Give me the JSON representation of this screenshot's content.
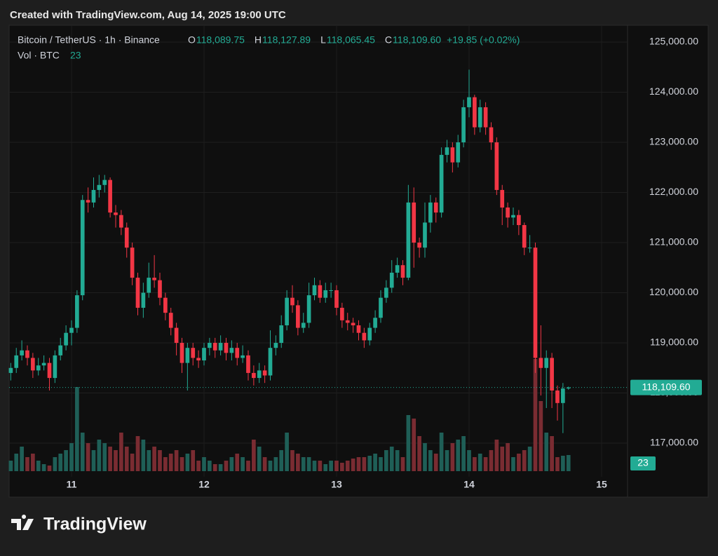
{
  "credit": "Created with TradingView.com, Aug 14, 2025 19:00 UTC",
  "brand": "TradingView",
  "chart_data": {
    "type": "candlestick",
    "symbol": "Bitcoin / TetherUS · 1h · Binance",
    "ohlc_header": [
      {
        "key": "O",
        "label": "118,089.75"
      },
      {
        "key": "H",
        "label": "118,127.89"
      },
      {
        "key": "L",
        "label": "118,065.45"
      },
      {
        "key": "C",
        "label": "118,109.60"
      }
    ],
    "change": "+19.85 (+0.02%)",
    "volume_title": "Vol · BTC",
    "volume_last": {
      "value": 23,
      "label": "23"
    },
    "last_price": {
      "value": 118109.6,
      "label": "118,109.60"
    },
    "up_color": "#22ab94",
    "down_color": "#f23645",
    "volume_up_color": "#1f5f57",
    "volume_down_color": "#7a2c32",
    "grid": true,
    "xlim": [
      -11.3,
      100.7
    ],
    "xticks": [
      {
        "value": 0,
        "label": "11"
      },
      {
        "value": 24,
        "label": "12"
      },
      {
        "value": 48,
        "label": "13"
      },
      {
        "value": 72,
        "label": "14"
      },
      {
        "value": 96,
        "label": "15"
      }
    ],
    "ylim": [
      116329,
      125280
    ],
    "yticks": [
      {
        "value": 117000,
        "label": "117,000.00"
      },
      {
        "value": 118000,
        "label": "118,000.00"
      },
      {
        "value": 119000,
        "label": "119,000.00"
      },
      {
        "value": 120000,
        "label": "120,000.00"
      },
      {
        "value": 121000,
        "label": "121,000.00"
      },
      {
        "value": 122000,
        "label": "122,000.00"
      },
      {
        "value": 123000,
        "label": "123,000.00"
      },
      {
        "value": 124000,
        "label": "124,000.00"
      },
      {
        "value": 125000,
        "label": "125,000.00"
      }
    ],
    "volume_lim": [
      0,
      632
    ],
    "x": [
      -11,
      -10,
      -9,
      -8,
      -7,
      -6,
      -5,
      -4,
      -3,
      -2,
      -1,
      0,
      1,
      2,
      3,
      4,
      5,
      6,
      7,
      8,
      9,
      10,
      11,
      12,
      13,
      14,
      15,
      16,
      17,
      18,
      19,
      20,
      21,
      22,
      23,
      24,
      25,
      26,
      27,
      28,
      29,
      30,
      31,
      32,
      33,
      34,
      35,
      36,
      37,
      38,
      39,
      40,
      41,
      42,
      43,
      44,
      45,
      46,
      47,
      48,
      49,
      50,
      51,
      52,
      53,
      54,
      55,
      56,
      57,
      58,
      59,
      60,
      61,
      62,
      63,
      64,
      65,
      66,
      67,
      68,
      69,
      70,
      71,
      72,
      73,
      74,
      75,
      76,
      77,
      78,
      79,
      80,
      81,
      82,
      83,
      84,
      85,
      86,
      87,
      88,
      89,
      90
    ],
    "open": [
      118400,
      118500,
      118750,
      118850,
      118700,
      118450,
      118550,
      118600,
      118300,
      118750,
      118950,
      119200,
      119300,
      119950,
      121850,
      121800,
      122050,
      122150,
      122250,
      121600,
      121550,
      121300,
      120900,
      120300,
      119700,
      120000,
      120300,
      120250,
      119900,
      119600,
      119300,
      119000,
      118600,
      118900,
      118700,
      118650,
      118900,
      119000,
      118850,
      119000,
      118800,
      118900,
      118700,
      118750,
      118400,
      118300,
      118450,
      118350,
      118900,
      119000,
      119350,
      119900,
      119750,
      119300,
      119400,
      119950,
      120150,
      119900,
      120050,
      120050,
      119700,
      119450,
      119400,
      119350,
      119200,
      119050,
      119300,
      119500,
      119900,
      120100,
      120400,
      120550,
      120300,
      121800,
      121000,
      120900,
      121400,
      121800,
      121600,
      122750,
      122900,
      122600,
      123000,
      123700,
      123900,
      123300,
      123700,
      123300,
      123000,
      122050,
      121700,
      121500,
      121550,
      121350,
      120900,
      120900,
      118700,
      118500,
      118700,
      118050,
      117800,
      118089.75
    ],
    "high": [
      118600,
      118900,
      119050,
      118950,
      118800,
      118700,
      118750,
      118700,
      118850,
      119100,
      119350,
      119450,
      120050,
      121950,
      122100,
      122300,
      122350,
      122350,
      122300,
      121750,
      121650,
      121400,
      121000,
      120400,
      120200,
      120600,
      120750,
      120400,
      120000,
      119700,
      119400,
      119100,
      119000,
      119000,
      118850,
      119000,
      119100,
      119100,
      119150,
      119100,
      119050,
      119000,
      118950,
      118850,
      118550,
      118600,
      118550,
      119250,
      119150,
      119550,
      120050,
      120150,
      119850,
      119600,
      120200,
      120300,
      120250,
      120200,
      120200,
      120150,
      119800,
      119600,
      119500,
      119450,
      119300,
      119400,
      119650,
      120050,
      120250,
      120650,
      120700,
      120650,
      122150,
      122100,
      121100,
      121800,
      121950,
      121900,
      122900,
      123050,
      123000,
      123150,
      123850,
      124450,
      123950,
      123850,
      123800,
      123400,
      123100,
      122150,
      121800,
      121700,
      121650,
      121400,
      121150,
      121000,
      119350,
      118850,
      118800,
      118150,
      118200,
      118127.89
    ],
    "low": [
      118250,
      118400,
      118650,
      118550,
      118300,
      118350,
      118450,
      118050,
      118200,
      118650,
      118850,
      118950,
      119200,
      119850,
      121600,
      121700,
      121900,
      122000,
      121500,
      121300,
      121150,
      120700,
      120150,
      119550,
      119500,
      119900,
      120100,
      119750,
      119450,
      119150,
      118750,
      118400,
      118050,
      118550,
      118500,
      118550,
      118750,
      118700,
      118750,
      118650,
      118650,
      118550,
      118600,
      118250,
      118150,
      118200,
      118200,
      118250,
      118750,
      118900,
      119250,
      119600,
      119150,
      119200,
      119300,
      119850,
      119800,
      119800,
      119900,
      119550,
      119300,
      119250,
      119200,
      119050,
      118900,
      118950,
      119200,
      119400,
      119800,
      120000,
      120300,
      120150,
      120250,
      120500,
      120700,
      120700,
      121200,
      121400,
      121500,
      122600,
      122400,
      122500,
      122900,
      123500,
      123150,
      123200,
      123150,
      122850,
      121950,
      121350,
      121300,
      121350,
      121150,
      120750,
      120800,
      118400,
      117950,
      117700,
      117700,
      117450,
      117200,
      118065.45
    ],
    "close": [
      118500,
      118750,
      118850,
      118700,
      118450,
      118550,
      118600,
      118300,
      118750,
      118950,
      119200,
      119300,
      119950,
      121850,
      121800,
      122050,
      122150,
      122250,
      121600,
      121550,
      121300,
      120900,
      120300,
      119700,
      120000,
      120300,
      120250,
      119900,
      119600,
      119300,
      119000,
      118600,
      118900,
      118700,
      118650,
      118900,
      119000,
      118850,
      119000,
      118800,
      118900,
      118700,
      118750,
      118400,
      118300,
      118450,
      118350,
      118900,
      119000,
      119350,
      119900,
      119750,
      119300,
      119400,
      119950,
      120150,
      119900,
      120050,
      120050,
      119700,
      119450,
      119400,
      119350,
      119200,
      119050,
      119300,
      119500,
      119900,
      120100,
      120400,
      120550,
      120300,
      121800,
      121000,
      120900,
      121400,
      121800,
      121600,
      122750,
      122900,
      122600,
      123000,
      123700,
      123900,
      123300,
      123700,
      123300,
      123000,
      122050,
      121700,
      121500,
      121550,
      121350,
      120900,
      120900,
      118700,
      118500,
      118700,
      118050,
      117800,
      118089.75,
      118109.6
    ],
    "volume": [
      15,
      25,
      35,
      20,
      25,
      15,
      10,
      8,
      20,
      25,
      30,
      40,
      120,
      55,
      40,
      30,
      45,
      40,
      35,
      30,
      55,
      35,
      25,
      50,
      45,
      30,
      35,
      30,
      20,
      25,
      30,
      20,
      25,
      30,
      15,
      20,
      15,
      10,
      10,
      15,
      20,
      25,
      20,
      15,
      45,
      35,
      20,
      15,
      20,
      30,
      55,
      30,
      25,
      20,
      20,
      15,
      15,
      10,
      15,
      15,
      12,
      15,
      18,
      20,
      20,
      22,
      25,
      20,
      30,
      35,
      30,
      20,
      80,
      75,
      50,
      40,
      30,
      25,
      55,
      30,
      40,
      45,
      50,
      30,
      20,
      25,
      20,
      30,
      45,
      35,
      40,
      20,
      25,
      30,
      35,
      160,
      100,
      55,
      50,
      20,
      22,
      23
    ]
  }
}
